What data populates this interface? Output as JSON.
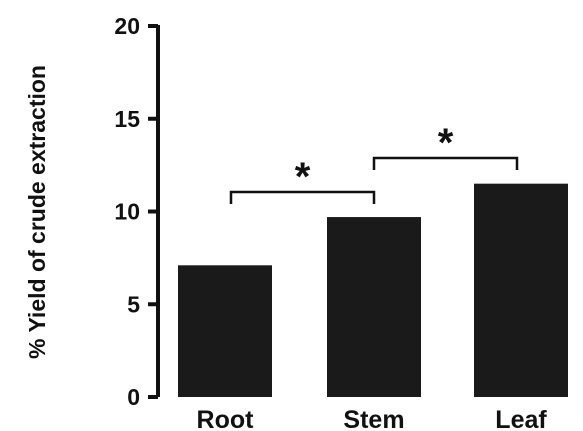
{
  "chart_data": {
    "type": "bar",
    "categories": [
      "Root",
      "Stem",
      "Leaf"
    ],
    "values": [
      7.1,
      9.7,
      11.5
    ],
    "ylabel": "% Yield of crude extraction",
    "xlabel": "",
    "ylim": [
      0,
      20
    ],
    "yticks": [
      "0",
      "5",
      "10",
      "15",
      "20"
    ],
    "grid": false,
    "bar_color": "#1a1a1a",
    "annotations": [
      {
        "from": "Root",
        "to": "Stem",
        "label": "*"
      },
      {
        "from": "Stem",
        "to": "Leaf",
        "label": "*"
      }
    ]
  }
}
